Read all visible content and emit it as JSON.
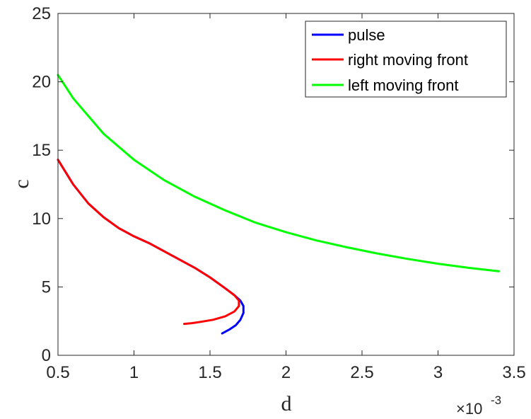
{
  "chart_data": {
    "type": "line",
    "xlabel": "d",
    "ylabel": "c",
    "x_exponent_label": "×10",
    "x_exponent_power": "-3",
    "xlim": [
      0.5,
      3.5
    ],
    "ylim": [
      0,
      25
    ],
    "x_ticks": [
      0.5,
      1,
      1.5,
      2,
      2.5,
      3,
      3.5
    ],
    "x_tick_labels": [
      "0.5",
      "1",
      "1.5",
      "2",
      "2.5",
      "3",
      "3.5"
    ],
    "y_ticks": [
      0,
      5,
      10,
      15,
      20,
      25
    ],
    "y_tick_labels": [
      "0",
      "5",
      "10",
      "15",
      "20",
      "25"
    ],
    "grid": false,
    "legend_position": "top-right",
    "series": [
      {
        "name": "pulse",
        "color": "#0000ff",
        "x": [
          0.5,
          0.6,
          0.7,
          0.8,
          0.9,
          1.0,
          1.1,
          1.2,
          1.3,
          1.4,
          1.5,
          1.6,
          1.66,
          1.7,
          1.72,
          1.72,
          1.7,
          1.67,
          1.63,
          1.58
        ],
        "y": [
          14.3,
          12.5,
          11.1,
          10.1,
          9.3,
          8.7,
          8.2,
          7.6,
          7.0,
          6.4,
          5.7,
          4.9,
          4.4,
          4.0,
          3.6,
          3.1,
          2.6,
          2.2,
          1.9,
          1.6
        ]
      },
      {
        "name": "right moving front",
        "color": "#ff0000",
        "x": [
          0.5,
          0.6,
          0.7,
          0.8,
          0.9,
          1.0,
          1.1,
          1.2,
          1.3,
          1.4,
          1.5,
          1.6,
          1.66,
          1.69,
          1.69,
          1.66,
          1.6,
          1.52,
          1.44,
          1.38,
          1.33
        ],
        "y": [
          14.3,
          12.5,
          11.1,
          10.1,
          9.3,
          8.7,
          8.2,
          7.6,
          7.0,
          6.4,
          5.7,
          4.9,
          4.4,
          4.0,
          3.6,
          3.2,
          2.85,
          2.6,
          2.45,
          2.35,
          2.3
        ]
      },
      {
        "name": "left moving front",
        "color": "#00ff00",
        "x": [
          0.5,
          0.6,
          0.8,
          1.0,
          1.2,
          1.4,
          1.6,
          1.8,
          2.0,
          2.2,
          2.4,
          2.6,
          2.8,
          3.0,
          3.2,
          3.4
        ],
        "y": [
          20.5,
          18.8,
          16.2,
          14.3,
          12.8,
          11.6,
          10.6,
          9.7,
          9.0,
          8.4,
          7.9,
          7.45,
          7.05,
          6.7,
          6.4,
          6.15
        ]
      }
    ]
  }
}
